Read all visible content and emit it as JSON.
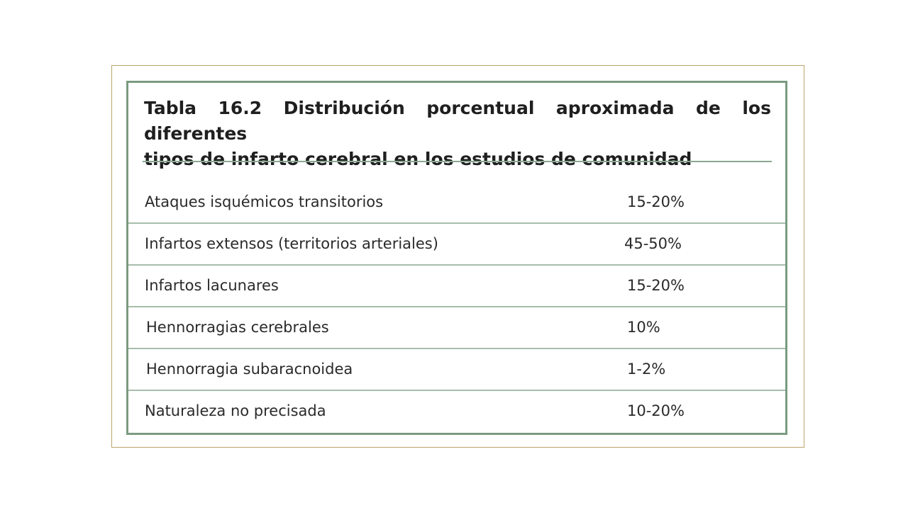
{
  "table": {
    "caption_line1": "Tabla 16.2 Distribución porcentual aproximada de los diferentes",
    "caption_line2": "tipos de infarto cerebral en los estudios de comunidad",
    "rows": [
      {
        "label": "Ataques isquémicos transitorios",
        "value": "15-20%"
      },
      {
        "label": "Infartos extensos (territorios arteriales)",
        "value": "45-50%"
      },
      {
        "label": "Infartos lacunares",
        "value": "15-20%"
      },
      {
        "label": "Hennorragias cerebrales",
        "value": "10%"
      },
      {
        "label": "Hennorragia subaracnoidea",
        "value": "1-2%"
      },
      {
        "label": "Naturaleza no precisada",
        "value": "10-20%"
      }
    ]
  },
  "colors": {
    "frame_border": "#b9a56a",
    "table_border": "#7a9b80",
    "row_divider": "#a7bdab"
  }
}
